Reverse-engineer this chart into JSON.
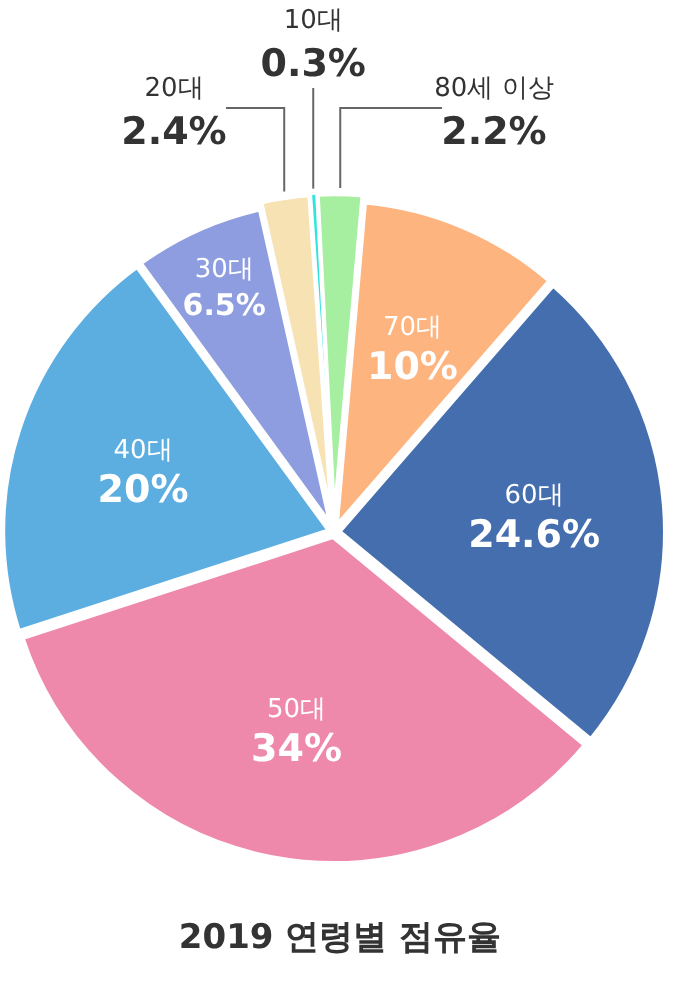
{
  "chart_data": {
    "type": "pie",
    "title": "2019 연령별 점유율",
    "categories": [
      "10대",
      "80세 이상",
      "70대",
      "60대",
      "50대",
      "40대",
      "30대",
      "20대"
    ],
    "values": [
      0.3,
      2.2,
      10,
      24.6,
      34,
      20,
      6.5,
      2.4
    ],
    "value_labels": [
      "0.3%",
      "2.2%",
      "10%",
      "24.6%",
      "34%",
      "20%",
      "6.5%",
      "2.4%"
    ],
    "colors": [
      "#33e3dc",
      "#a6eea0",
      "#fdb47f",
      "#456eae",
      "#ee89ab",
      "#5caee0",
      "#8e9de0",
      "#f6e2b2"
    ]
  }
}
